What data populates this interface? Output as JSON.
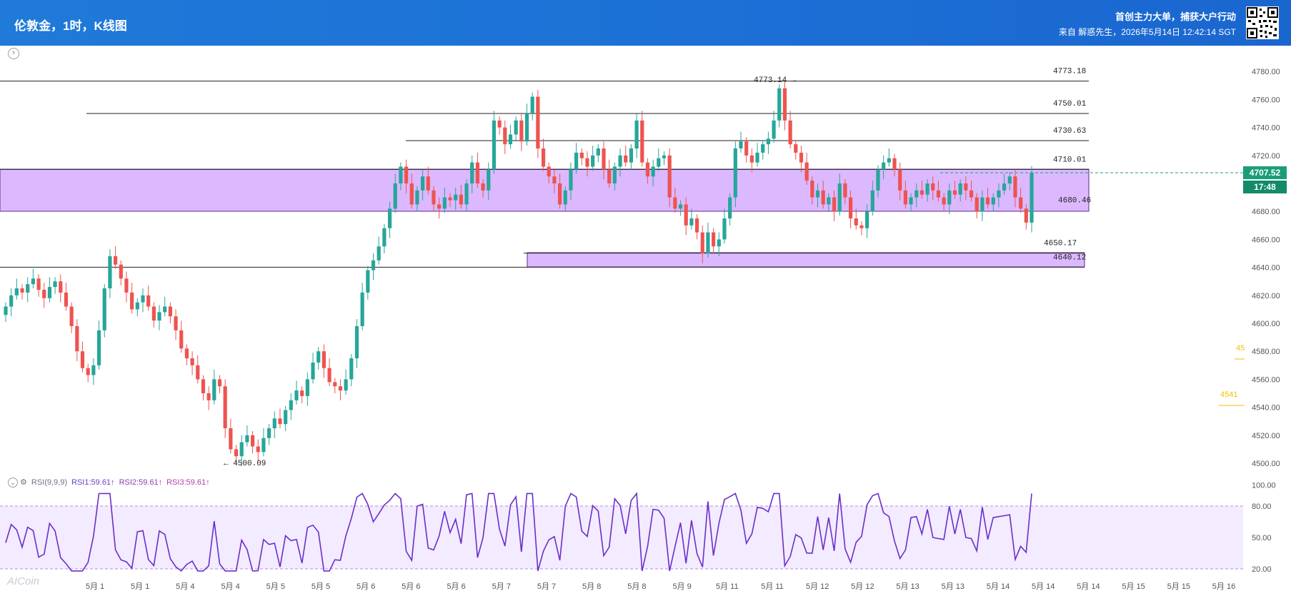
{
  "header": {
    "title": "伦敦金，1时，K线图",
    "promo": "首创主力大单，捕获大户行动",
    "source": "来自 解惑先生，2026年5月14日 12:42:14 SGT"
  },
  "price_tag": {
    "price": "4707.52",
    "countdown": "17:48"
  },
  "rsi": {
    "name": "RSI(9,9,9)",
    "rsi1": "RSI1:59.61↑",
    "rsi2": "RSI2:59.61↑",
    "rsi3": "RSI3:59.61↑"
  },
  "logo": "AICoin",
  "colors": {
    "up": "#26a69a",
    "down": "#ef5350",
    "zone": "#d9b3ff",
    "zone_border": "#5b2b8c",
    "rsi_line": "#6a2fc8",
    "rsi_bg": "#f3ebff",
    "price_tag": "#1a9e78",
    "yellow": "#f2c200"
  },
  "chart_data": {
    "type": "candlestick",
    "title": "伦敦金，1时，K线图",
    "y_range": [
      4490,
      4790
    ],
    "y_ticks": [
      4500,
      4520,
      4540,
      4560,
      4580,
      4600,
      4620,
      4640,
      4660,
      4680,
      4700,
      4720,
      4740,
      4760,
      4780
    ],
    "y_tick_labels": [
      "4500.00",
      "4520.00",
      "4540.00",
      "4560.00",
      "4580.00",
      "4600.00",
      "4620.00",
      "4640.00",
      "4660.00",
      "4680.00",
      "4700.00",
      "4720.00",
      "4740.00",
      "4760.00",
      "4780.00"
    ],
    "x_labels": [
      "5月 1",
      "5月 1",
      "5月 4",
      "5月 4",
      "5月 5",
      "5月 5",
      "5月 6",
      "5月 6",
      "5月 6",
      "5月 7",
      "5月 7",
      "5月 8",
      "5月 8",
      "5月 9",
      "5月 11",
      "5月 11",
      "5月 12",
      "5月 12",
      "5月 13",
      "5月 13",
      "5月 14",
      "5月 14",
      "5月 14",
      "5月 15",
      "5月 15",
      "5月 16"
    ],
    "horizontal_lines": [
      {
        "value": 4773.18,
        "label": "4773.18"
      },
      {
        "value": 4750.01,
        "label": "4750.01"
      },
      {
        "value": 4730.63,
        "label": "4730.63"
      },
      {
        "value": 4710.01,
        "label": "4710.01"
      },
      {
        "value": 4650.17,
        "label": "4650.17"
      },
      {
        "value": 4640.12,
        "label": "4640.12"
      }
    ],
    "zones": [
      {
        "top": 4710.01,
        "bottom": 4680.46,
        "label": "4680.46"
      },
      {
        "top": 4650.17,
        "bottom": 4640.12
      }
    ],
    "annotations": [
      {
        "label": "4773.14",
        "value": 4773.14
      },
      {
        "label": "4500.09",
        "value": 4500.09
      }
    ],
    "last_price": 4707.52,
    "side_markers": [
      "45",
      "4541"
    ],
    "closes": [
      4612,
      4620,
      4625,
      4622,
      4628,
      4632,
      4624,
      4618,
      4626,
      4630,
      4622,
      4612,
      4598,
      4580,
      4568,
      4563,
      4570,
      4595,
      4625,
      4648,
      4642,
      4632,
      4622,
      4610,
      4615,
      4620,
      4612,
      4602,
      4608,
      4612,
      4605,
      4595,
      4582,
      4575,
      4570,
      4560,
      4550,
      4545,
      4560,
      4555,
      4525,
      4510,
      4505,
      4515,
      4520,
      4512,
      4508,
      4518,
      4525,
      4532,
      4528,
      4538,
      4545,
      4552,
      4548,
      4560,
      4572,
      4580,
      4568,
      4558,
      4555,
      4552,
      4560,
      4575,
      4598,
      4622,
      4638,
      4645,
      4655,
      4668,
      4682,
      4700,
      4712,
      4700,
      4685,
      4695,
      4705,
      4695,
      4685,
      4682,
      4690,
      4688,
      4692,
      4685,
      4700,
      4715,
      4700,
      4695,
      4710,
      4745,
      4740,
      4728,
      4735,
      4745,
      4730,
      4750,
      4762,
      4725,
      4712,
      4705,
      4700,
      4685,
      4695,
      4710,
      4722,
      4718,
      4712,
      4720,
      4725,
      4710,
      4700,
      4712,
      4720,
      4715,
      4725,
      4745,
      4715,
      4705,
      4712,
      4718,
      4720,
      4690,
      4682,
      4685,
      4670,
      4675,
      4665,
      4650,
      4665,
      4655,
      4660,
      4675,
      4690,
      4725,
      4730,
      4720,
      4715,
      4722,
      4728,
      4732,
      4745,
      4768,
      4745,
      4728,
      4722,
      4715,
      4702,
      4690,
      4695,
      4685,
      4690,
      4680,
      4700,
      4690,
      4675,
      4670,
      4668,
      4680,
      4695,
      4710,
      4715,
      4718,
      4710,
      4695,
      4685,
      4690,
      4695,
      4692,
      4700,
      4695,
      4690,
      4685,
      4695,
      4692,
      4700,
      4695,
      4690,
      4680,
      4690,
      4685,
      4690,
      4695,
      4700,
      4705,
      4690,
      4682,
      4672,
      4707.52
    ]
  }
}
